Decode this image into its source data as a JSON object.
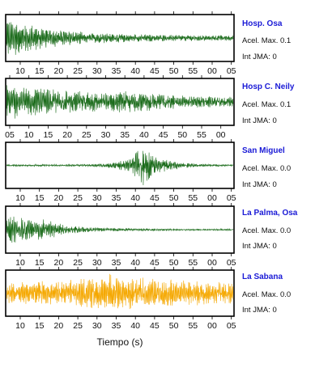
{
  "chart_data": [
    {
      "type": "line",
      "station": "Hosp. Osa",
      "acel_label": "Acel. Max. 0.1",
      "jma_label": "Int JMA: 0",
      "color": "#1a6b1a",
      "ticks": [
        "10",
        "15",
        "20",
        "25",
        "30",
        "35",
        "40",
        "45",
        "50",
        "55",
        "00",
        "05"
      ]
    },
    {
      "type": "line",
      "station": "Hosp C. Neily",
      "acel_label": "Acel. Max. 0.1",
      "jma_label": "Int JMA: 0",
      "color": "#1a6b1a",
      "ticks": [
        "05",
        "10",
        "15",
        "20",
        "25",
        "30",
        "35",
        "40",
        "45",
        "50",
        "55",
        "00"
      ]
    },
    {
      "type": "line",
      "station": "San Miguel",
      "acel_label": "Acel. Max. 0.0",
      "jma_label": "Int JMA: 0",
      "color": "#1a6b1a",
      "ticks": [
        "10",
        "15",
        "20",
        "25",
        "30",
        "35",
        "40",
        "45",
        "50",
        "55",
        "00",
        "05"
      ]
    },
    {
      "type": "line",
      "station": "La Palma, Osa",
      "acel_label": "Acel. Max. 0.0",
      "jma_label": "Int JMA: 0",
      "color": "#1a6b1a",
      "ticks": [
        "10",
        "15",
        "20",
        "25",
        "30",
        "35",
        "40",
        "45",
        "50",
        "55",
        "00",
        "05"
      ]
    },
    {
      "type": "line",
      "station": "La Sabana",
      "acel_label": "Acel. Max. 0.0",
      "jma_label": "Int JMA: 0",
      "color": "#f5a800",
      "ticks": [
        "10",
        "15",
        "20",
        "25",
        "30",
        "35",
        "40",
        "45",
        "50",
        "55",
        "00",
        "05"
      ]
    }
  ],
  "xlabel": "Tiempo (s)"
}
